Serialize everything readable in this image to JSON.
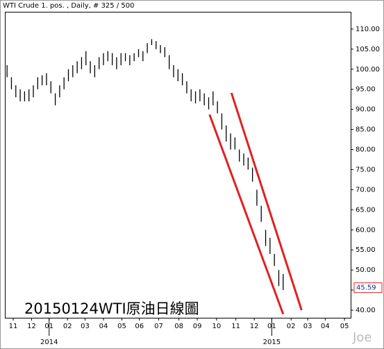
{
  "chart_data": {
    "type": "range-bar",
    "title": "WTI Crude 1. pos. , Daily, # 325 / 500",
    "annotation": "20150124WTI原油日線圖",
    "watermark": "Joe",
    "color": "#000000",
    "x": [
      8,
      13,
      18,
      23,
      28,
      33,
      38,
      43,
      48,
      53,
      58,
      63,
      68,
      73,
      78,
      83,
      88,
      93,
      98,
      103,
      108,
      113,
      118,
      123,
      128,
      133,
      138,
      143,
      148,
      153,
      158,
      163,
      168,
      173,
      178,
      183,
      188,
      193,
      198,
      203,
      208,
      213,
      218,
      223,
      228,
      233,
      238,
      243,
      248,
      253,
      258,
      263,
      268,
      273,
      278,
      283,
      288,
      293,
      298,
      303,
      308,
      313,
      318,
      323
    ],
    "high": [
      101,
      98,
      96,
      95,
      94.5,
      95,
      96,
      98,
      98.5,
      99,
      97,
      94,
      96,
      98,
      100,
      101,
      102,
      103,
      104.5,
      102,
      101,
      103,
      104,
      104.5,
      104,
      103,
      104,
      104,
      103.5,
      104,
      105,
      104.5,
      106.5,
      107.5,
      107,
      106,
      105.5,
      103.5,
      101,
      100,
      99,
      97,
      95,
      94.5,
      95,
      94,
      93,
      94.5,
      92,
      89,
      86,
      84,
      83,
      80,
      79,
      78,
      75.5,
      70,
      66,
      60,
      58,
      54,
      50,
      49
    ],
    "low": [
      98,
      95,
      93,
      92,
      92,
      92,
      93,
      95,
      96,
      96,
      94,
      91,
      93,
      95,
      97,
      98,
      99,
      100,
      101,
      99,
      98,
      100,
      101,
      102,
      101,
      100,
      101,
      102,
      101,
      102,
      103,
      102,
      104,
      106,
      105,
      104,
      103,
      100,
      98,
      97,
      96,
      94,
      92,
      91.5,
      92,
      91,
      90,
      91,
      89,
      85,
      82,
      80,
      80,
      77,
      76,
      75,
      72,
      66,
      62,
      56,
      54,
      51,
      46,
      45
    ],
    "last_price": 45.59,
    "trendlines": [
      {
        "color": "#e02020",
        "x": [
          239,
          323
        ],
        "y": [
          88.7,
          39.0
        ]
      },
      {
        "color": "#e02020",
        "x": [
          264,
          344
        ],
        "y": [
          94.1,
          40.0
        ]
      }
    ],
    "xlim": [
      5.5,
      400
    ],
    "xticks": [
      {
        "value": 15,
        "label": "11"
      },
      {
        "value": 36,
        "label": "12"
      },
      {
        "value": 56,
        "label": "01"
      },
      {
        "value": 77,
        "label": "02"
      },
      {
        "value": 97,
        "label": "03"
      },
      {
        "value": 118,
        "label": "04"
      },
      {
        "value": 139,
        "label": "05"
      },
      {
        "value": 159,
        "label": "06"
      },
      {
        "value": 181,
        "label": "07"
      },
      {
        "value": 204,
        "label": "08"
      },
      {
        "value": 225,
        "label": "09"
      },
      {
        "value": 247,
        "label": "10"
      },
      {
        "value": 269,
        "label": "11"
      },
      {
        "value": 290,
        "label": "12"
      },
      {
        "value": 310,
        "label": "01"
      },
      {
        "value": 332,
        "label": "02"
      },
      {
        "value": 351,
        "label": "03"
      },
      {
        "value": 371,
        "label": "04"
      },
      {
        "value": 393,
        "label": "05"
      }
    ],
    "year_labels": [
      {
        "value": 56,
        "label": "2014"
      },
      {
        "value": 310,
        "label": "2015"
      }
    ],
    "ylim": [
      38.1,
      114.3
    ],
    "yticks": [
      {
        "value": 40,
        "label": "40.00"
      },
      {
        "value": 45,
        "label": "45.00"
      },
      {
        "value": 50,
        "label": "50.00"
      },
      {
        "value": 55,
        "label": "55.00"
      },
      {
        "value": 60,
        "label": "60.00"
      },
      {
        "value": 65,
        "label": "65.00"
      },
      {
        "value": 70,
        "label": "70.00"
      },
      {
        "value": 75,
        "label": "75.00"
      },
      {
        "value": 80,
        "label": "80.00"
      },
      {
        "value": 85,
        "label": "85.00"
      },
      {
        "value": 90,
        "label": "90.00"
      },
      {
        "value": 95,
        "label": "95.00"
      },
      {
        "value": 100,
        "label": "100.00"
      },
      {
        "value": 105,
        "label": "105.00"
      },
      {
        "value": 110,
        "label": "110.00"
      }
    ]
  }
}
